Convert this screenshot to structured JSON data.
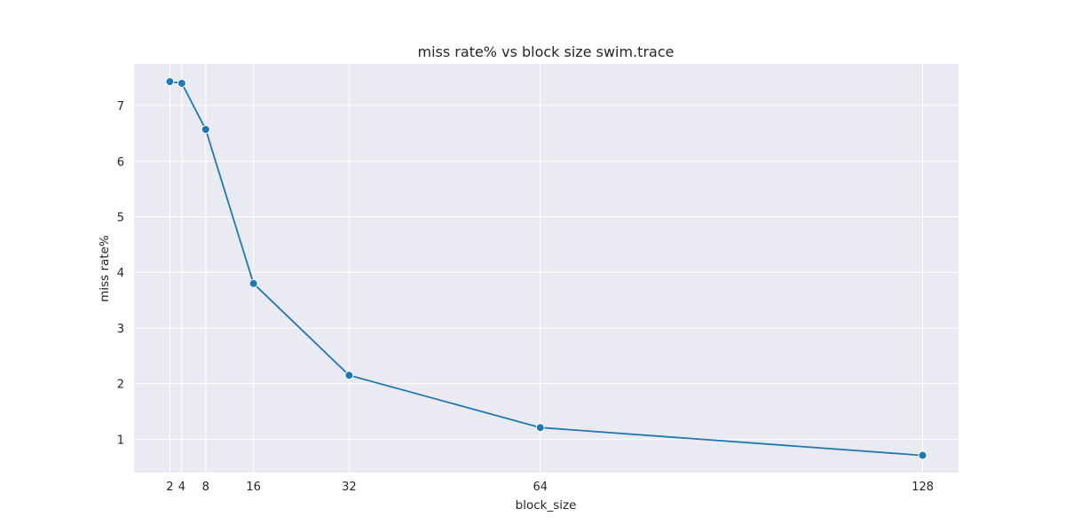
{
  "chart_data": {
    "type": "line",
    "title": "miss rate% vs block size swim.trace",
    "xlabel": "block_size",
    "ylabel": "miss rate%",
    "x": [
      2,
      4,
      8,
      16,
      32,
      64,
      128
    ],
    "y": [
      7.43,
      7.4,
      6.57,
      3.8,
      2.15,
      1.21,
      0.71
    ],
    "xticks": [
      2,
      4,
      8,
      16,
      32,
      64,
      128
    ],
    "yticks": [
      1,
      2,
      3,
      4,
      5,
      6,
      7
    ],
    "xlim": [
      -4,
      134
    ],
    "ylim": [
      0.4,
      7.75
    ],
    "grid": true,
    "colors": {
      "background": "#eaeaf2",
      "grid": "#ffffff",
      "line": "#1f77b4",
      "marker_edge": "#ffffff"
    }
  }
}
